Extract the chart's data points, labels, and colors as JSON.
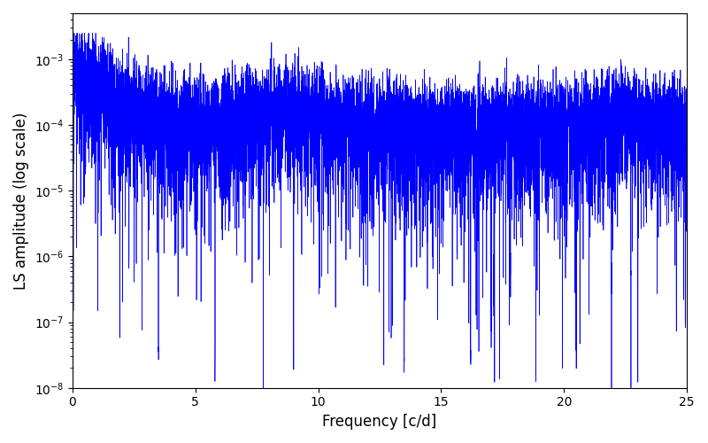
{
  "title": "",
  "xlabel": "Frequency [c/d]",
  "ylabel": "LS amplitude (log scale)",
  "xlim": [
    0,
    25
  ],
  "ylim": [
    1e-08,
    0.005
  ],
  "line_color": "#0000ff",
  "line_width": 0.5,
  "background_color": "#ffffff",
  "freq_min": 0.0,
  "freq_max": 25.0,
  "n_points": 8000,
  "seed": 7,
  "base_amplitude": 0.00012,
  "noise_floor": 1e-08,
  "figsize": [
    8.0,
    5.0
  ],
  "dpi": 100
}
